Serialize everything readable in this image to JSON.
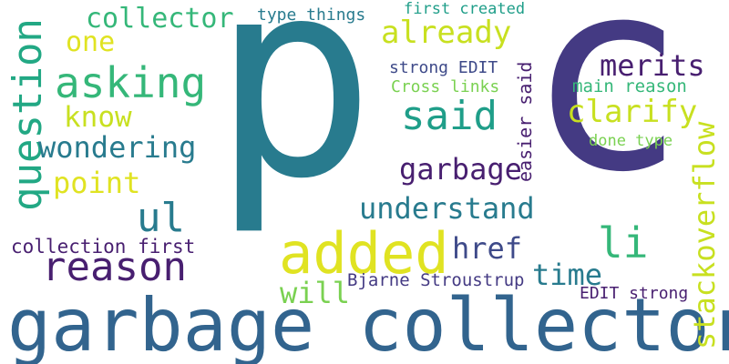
{
  "palette": {
    "background": "#ffffff",
    "teal": "#287b8e",
    "blue": "#32648e",
    "indigo": "#443a83",
    "dark_purple": "#481f70",
    "violet": "#3e4a89",
    "green": "#35b779",
    "lime": "#c8e020",
    "yellow": "#e0e322",
    "light_green": "#7ad151",
    "sea_green": "#22a884",
    "cyan_teal": "#1f9e89"
  },
  "words": [
    {
      "id": "p",
      "text": "p",
      "color": "#287b8e"
    },
    {
      "id": "c",
      "text": "c",
      "color": "#443a83"
    },
    {
      "id": "garbage-collector",
      "text": "garbage collector",
      "color": "#32648e"
    },
    {
      "id": "added",
      "text": "added",
      "color": "#e0e322"
    },
    {
      "id": "question",
      "text": "question",
      "color": "#22a884"
    },
    {
      "id": "asking",
      "text": "asking",
      "color": "#35b779"
    },
    {
      "id": "collector",
      "text": "collector",
      "color": "#35b779"
    },
    {
      "id": "one",
      "text": "one",
      "color": "#e0e322"
    },
    {
      "id": "know",
      "text": "know",
      "color": "#c8e020"
    },
    {
      "id": "wondering",
      "text": "wondering",
      "color": "#287b8e"
    },
    {
      "id": "point",
      "text": "point",
      "color": "#e0e322"
    },
    {
      "id": "ul",
      "text": "ul",
      "color": "#287b8e"
    },
    {
      "id": "reason",
      "text": "reason",
      "color": "#481f70"
    },
    {
      "id": "collection-first",
      "text": "collection first",
      "color": "#481f70"
    },
    {
      "id": "type-things",
      "text": "type things",
      "color": "#287b8e"
    },
    {
      "id": "first-created",
      "text": "first created",
      "color": "#1f9e89"
    },
    {
      "id": "already",
      "text": "already",
      "color": "#c8e020"
    },
    {
      "id": "said",
      "text": "said",
      "color": "#1f9e89"
    },
    {
      "id": "garbage",
      "text": "garbage",
      "color": "#481f70"
    },
    {
      "id": "understand",
      "text": "understand",
      "color": "#287b8e"
    },
    {
      "id": "href",
      "text": "href",
      "color": "#3e4a89"
    },
    {
      "id": "time",
      "text": "time",
      "color": "#287b8e"
    },
    {
      "id": "will",
      "text": "will",
      "color": "#7ad151"
    },
    {
      "id": "bjarne-stroustrup",
      "text": "Bjarne Stroustrup",
      "color": "#443a83"
    },
    {
      "id": "strong-edit",
      "text": "strong EDIT",
      "color": "#3e4a89"
    },
    {
      "id": "cross-links",
      "text": "Cross links",
      "color": "#7ad151"
    },
    {
      "id": "easier-said",
      "text": "easier said",
      "color": "#481f70"
    },
    {
      "id": "merits",
      "text": "merits",
      "color": "#481f70"
    },
    {
      "id": "main-reason",
      "text": "main reason",
      "color": "#35b779"
    },
    {
      "id": "clarify",
      "text": "clarify",
      "color": "#c8e020"
    },
    {
      "id": "done-type",
      "text": "done type",
      "color": "#7ad151"
    },
    {
      "id": "stackoverflow",
      "text": "stackoverflow",
      "color": "#c8e020"
    },
    {
      "id": "li",
      "text": "li",
      "color": "#35b779"
    },
    {
      "id": "edit-strong",
      "text": "EDIT strong",
      "color": "#481f70"
    }
  ]
}
